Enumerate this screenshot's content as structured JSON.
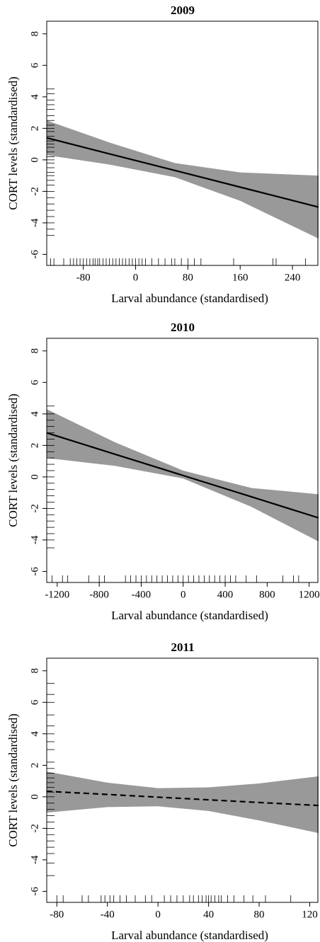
{
  "chart_data": [
    {
      "type": "line",
      "title": "2009",
      "x_label": "Larval abundance (standardised)",
      "y_label": "CORT levels (standardised)",
      "x": [
        -136,
        -40,
        60,
        160,
        280
      ],
      "values": [
        1.4,
        0.38,
        -0.67,
        -1.73,
        -3.0
      ],
      "band_lower": [
        0.3,
        -0.3,
        -1.1,
        -2.6,
        -5.0
      ],
      "band_upper": [
        2.5,
        1.1,
        -0.2,
        -0.8,
        -1.0
      ],
      "line_style": "solid",
      "color": "#000000",
      "band_color": "#999999",
      "rug_x": [
        -130,
        -125,
        -110,
        -100,
        -95,
        -90,
        -85,
        -80,
        -75,
        -70,
        -65,
        -62,
        -58,
        -55,
        -50,
        -45,
        -40,
        -35,
        -30,
        -25,
        -20,
        -15,
        -10,
        -5,
        0,
        5,
        10,
        15,
        25,
        35,
        45,
        55,
        60,
        70,
        80,
        90,
        100,
        150,
        210,
        215,
        260
      ],
      "rug_y": [
        4.5,
        4.2,
        3.8,
        3.5,
        3.2,
        2.8,
        2.5,
        2.2,
        2.0,
        1.8,
        1.5,
        1.2,
        1.0,
        0.8,
        0.5,
        0.2,
        0,
        -0.2,
        -0.5,
        -0.8,
        -1.0,
        -1.3,
        -1.6,
        -2.0,
        -2.4,
        -2.8,
        -3.2,
        -3.6,
        -4.0,
        -4.4,
        -4.8
      ],
      "xlim": [
        -136,
        280
      ],
      "ylim": [
        -6.7,
        8.8
      ],
      "xticks": [
        -80,
        0,
        80,
        160,
        240
      ],
      "yticks": [
        -6,
        -4,
        -2,
        0,
        2,
        4,
        6,
        8
      ]
    },
    {
      "type": "line",
      "title": "2010",
      "x_label": "Larval abundance (standardised)",
      "y_label": "CORT levels (standardised)",
      "x": [
        -1300,
        -650,
        0,
        650,
        1290
      ],
      "values": [
        2.8,
        1.44,
        0.09,
        -1.26,
        -2.6
      ],
      "band_lower": [
        1.2,
        0.7,
        -0.1,
        -1.9,
        -4.1
      ],
      "band_upper": [
        4.3,
        2.2,
        0.4,
        -0.7,
        -1.1
      ],
      "line_style": "solid",
      "color": "#000000",
      "band_color": "#999999",
      "rug_x": [
        -1250,
        -1150,
        -1100,
        -900,
        -800,
        -750,
        -550,
        -500,
        -450,
        -400,
        -350,
        -300,
        -250,
        -200,
        -150,
        -100,
        -50,
        0,
        50,
        100,
        150,
        200,
        250,
        300,
        350,
        400,
        450,
        500,
        600,
        700,
        950,
        1050,
        1100
      ],
      "rug_y": [
        4.5,
        4.0,
        3.6,
        3.2,
        2.8,
        2.4,
        2.0,
        1.6,
        1.2,
        0.8,
        0.4,
        0,
        -0.4,
        -0.8,
        -1.2,
        -1.6,
        -2.0,
        -2.4,
        -2.8,
        -3.2,
        -3.6,
        -4.0,
        -4.5
      ],
      "xlim": [
        -1300,
        1290
      ],
      "ylim": [
        -6.7,
        8.8
      ],
      "xticks": [
        -1200,
        -800,
        -400,
        0,
        400,
        800,
        1200
      ],
      "yticks": [
        -6,
        -4,
        -2,
        0,
        2,
        4,
        6,
        8
      ]
    },
    {
      "type": "line",
      "title": "2011",
      "x_label": "Larval abundance (standardised)",
      "y_label": "CORT levels (standardised)",
      "x": [
        -88,
        -40,
        0,
        40,
        80,
        127
      ],
      "values": [
        0.35,
        0.15,
        -0.02,
        -0.19,
        -0.36,
        -0.55
      ],
      "band_lower": [
        -1.0,
        -0.65,
        -0.6,
        -0.9,
        -1.5,
        -2.3
      ],
      "band_upper": [
        1.6,
        0.9,
        0.55,
        0.6,
        0.85,
        1.3
      ],
      "line_style": "dashed",
      "color": "#000000",
      "band_color": "#999999",
      "rug_x": [
        -80,
        -75,
        -60,
        -55,
        -45,
        -42,
        -38,
        -35,
        -30,
        -25,
        -18,
        -10,
        -5,
        5,
        10,
        15,
        20,
        25,
        28,
        32,
        35,
        38,
        40,
        42,
        45,
        48,
        50,
        55,
        60,
        68,
        75,
        85,
        105
      ],
      "rug_y": [
        7.2,
        6.5,
        6.0,
        5.2,
        4.5,
        4.0,
        3.5,
        3.0,
        2.2,
        1.8,
        1.5,
        1.2,
        0.9,
        0.6,
        0.3,
        0,
        -0.4,
        -0.8,
        -1.2,
        -1.6,
        -2.0,
        -2.4,
        -2.8,
        -3.2,
        -3.6,
        -4.2,
        -5.0
      ],
      "xlim": [
        -88,
        127
      ],
      "ylim": [
        -6.7,
        8.8
      ],
      "xticks": [
        -80,
        -40,
        0,
        40,
        80,
        120
      ],
      "yticks": [
        -6,
        -4,
        -2,
        0,
        2,
        4,
        6,
        8
      ]
    }
  ]
}
